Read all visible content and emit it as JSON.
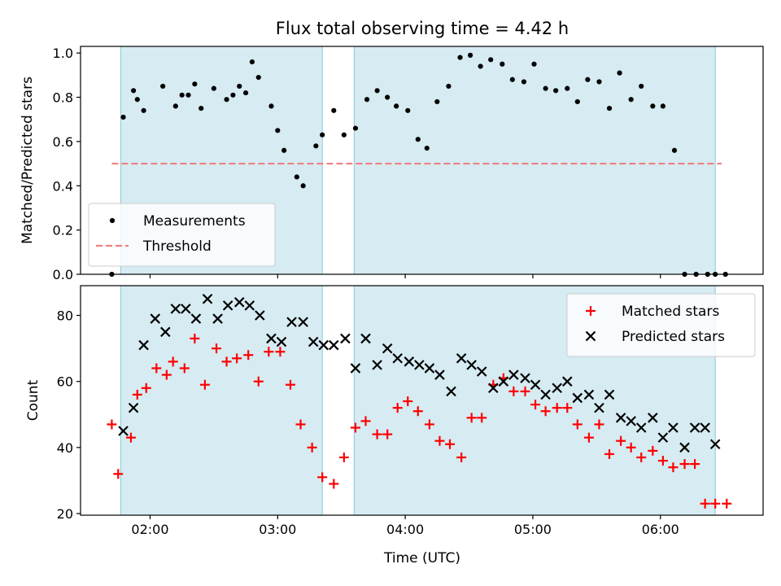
{
  "chart_data": {
    "title": "Flux total observing time = 4.42 h",
    "xlabel": "Time (UTC)",
    "x_ticks": [
      "02:00",
      "03:00",
      "04:00",
      "05:00",
      "06:00"
    ],
    "x_tick_hours": [
      2,
      3,
      4,
      5,
      6
    ],
    "xlim_hours": [
      1.455,
      6.805
    ],
    "shaded_intervals_hours": [
      [
        1.77,
        3.35
      ],
      [
        3.6,
        6.43
      ]
    ],
    "shade_color": "#add8e6",
    "panels": [
      {
        "type": "scatter",
        "ylabel": "Matched/Predicted stars",
        "ylim": [
          0,
          1.03
        ],
        "y_ticks": [
          "0.0",
          "0.2",
          "0.4",
          "0.6",
          "0.8",
          "1.0"
        ],
        "y_tick_values": [
          0,
          0.2,
          0.4,
          0.6,
          0.8,
          1.0
        ],
        "legend_position": "lower-left",
        "threshold": {
          "name": "Threshold",
          "value": 0.5,
          "x_range_hours": [
            1.7,
            6.48
          ],
          "color": "#f08080"
        },
        "series": [
          {
            "name": "Measurements",
            "marker": "dot",
            "color": "#000000",
            "x": [
              1.7,
              1.79,
              1.87,
              1.9,
              1.95,
              2.1,
              2.2,
              2.25,
              2.3,
              2.35,
              2.4,
              2.5,
              2.6,
              2.65,
              2.7,
              2.75,
              2.8,
              2.85,
              2.95,
              3.0,
              3.05,
              3.15,
              3.2,
              3.3,
              3.35,
              3.44,
              3.52,
              3.61,
              3.7,
              3.78,
              3.86,
              3.93,
              4.02,
              4.1,
              4.17,
              4.25,
              4.34,
              4.43,
              4.51,
              4.59,
              4.67,
              4.76,
              4.84,
              4.93,
              5.01,
              5.1,
              5.18,
              5.27,
              5.35,
              5.43,
              5.52,
              5.6,
              5.68,
              5.77,
              5.85,
              5.94,
              6.02,
              6.11,
              6.19,
              6.28,
              6.37,
              6.43,
              6.51
            ],
            "y": [
              0.0,
              0.71,
              0.83,
              0.79,
              0.74,
              0.85,
              0.76,
              0.81,
              0.81,
              0.86,
              0.75,
              0.84,
              0.79,
              0.81,
              0.85,
              0.82,
              0.96,
              0.89,
              0.76,
              0.65,
              0.56,
              0.44,
              0.4,
              0.58,
              0.63,
              0.74,
              0.63,
              0.66,
              0.79,
              0.83,
              0.8,
              0.76,
              0.74,
              0.61,
              0.57,
              0.78,
              0.85,
              0.98,
              0.99,
              0.94,
              0.97,
              0.95,
              0.88,
              0.87,
              0.95,
              0.84,
              0.83,
              0.84,
              0.78,
              0.88,
              0.87,
              0.75,
              0.91,
              0.79,
              0.85,
              0.76,
              0.76,
              0.56,
              0.0,
              0.0,
              0.0,
              0.0,
              0.0
            ]
          }
        ]
      },
      {
        "type": "scatter",
        "ylabel": "Count",
        "ylim": [
          19.5,
          89
        ],
        "y_ticks": [
          "20",
          "40",
          "60",
          "80"
        ],
        "y_tick_values": [
          20,
          40,
          60,
          80
        ],
        "legend_position": "upper-right",
        "series": [
          {
            "name": "Matched stars",
            "marker": "plus",
            "color": "#ff0000",
            "x": [
              1.7,
              1.75,
              1.85,
              1.9,
              1.97,
              2.05,
              2.13,
              2.18,
              2.27,
              2.35,
              2.43,
              2.52,
              2.6,
              2.68,
              2.77,
              2.85,
              2.93,
              3.02,
              3.1,
              3.18,
              3.27,
              3.35,
              3.44,
              3.52,
              3.61,
              3.69,
              3.78,
              3.86,
              3.94,
              4.02,
              4.1,
              4.19,
              4.27,
              4.35,
              4.44,
              4.52,
              4.6,
              4.69,
              4.77,
              4.85,
              4.94,
              5.02,
              5.1,
              5.19,
              5.27,
              5.35,
              5.44,
              5.52,
              5.6,
              5.69,
              5.77,
              5.85,
              5.94,
              6.02,
              6.1,
              6.19,
              6.27,
              6.35,
              6.43,
              6.52
            ],
            "y": [
              47,
              32,
              43,
              56,
              58,
              64,
              62,
              66,
              64,
              73,
              59,
              70,
              66,
              67,
              68,
              60,
              69,
              69,
              59,
              47,
              40,
              31,
              29,
              37,
              46,
              48,
              44,
              44,
              52,
              54,
              51,
              47,
              42,
              41,
              37,
              49,
              49,
              59,
              61,
              57,
              57,
              53,
              51,
              52,
              52,
              47,
              43,
              47,
              38,
              42,
              40,
              37,
              39,
              36,
              34,
              35,
              35,
              23,
              23,
              23
            ]
          },
          {
            "name": "Predicted stars",
            "marker": "x",
            "color": "#000000",
            "x": [
              1.79,
              1.87,
              1.95,
              2.04,
              2.12,
              2.2,
              2.28,
              2.36,
              2.45,
              2.53,
              2.61,
              2.7,
              2.78,
              2.86,
              2.95,
              3.03,
              3.11,
              3.2,
              3.28,
              3.36,
              3.44,
              3.53,
              3.61,
              3.69,
              3.78,
              3.86,
              3.94,
              4.03,
              4.11,
              4.19,
              4.27,
              4.36,
              4.44,
              4.52,
              4.6,
              4.69,
              4.77,
              4.85,
              4.94,
              5.02,
              5.1,
              5.19,
              5.27,
              5.35,
              5.44,
              5.52,
              5.6,
              5.69,
              5.77,
              5.85,
              5.94,
              6.02,
              6.1,
              6.19,
              6.27,
              6.35,
              6.43
            ],
            "y": [
              45,
              52,
              71,
              79,
              75,
              82,
              82,
              79,
              85,
              79,
              83,
              84,
              83,
              80,
              73,
              72,
              78,
              78,
              72,
              71,
              71,
              73,
              64,
              73,
              65,
              70,
              67,
              66,
              65,
              64,
              62,
              57,
              67,
              65,
              63,
              58,
              60,
              62,
              61,
              59,
              56,
              58,
              60,
              55,
              56,
              52,
              56,
              49,
              48,
              46,
              49,
              43,
              46,
              40,
              46,
              46,
              41
            ]
          }
        ]
      }
    ]
  }
}
